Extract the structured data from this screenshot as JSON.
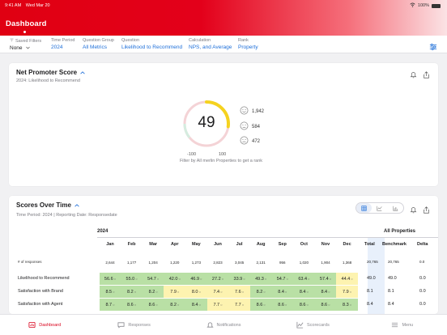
{
  "status": {
    "time": "9:41 AM",
    "date": "Wed Mar 20",
    "battery": "100%"
  },
  "app": {
    "title": "Dashboard"
  },
  "filters": [
    {
      "label": "Saved Filters",
      "value": "None",
      "dark": true
    },
    {
      "label": "Time Period",
      "value": "2024"
    },
    {
      "label": "Question Group",
      "value": "All Metrics"
    },
    {
      "label": "Question",
      "value": "Likelihood to Recommend"
    },
    {
      "label": "Calculation",
      "value": "NPS, and Average"
    },
    {
      "label": "Rank",
      "value": "Property"
    }
  ],
  "nps": {
    "title": "Net Promoter Score",
    "subtitle": "2024: Likelihood to Recommend",
    "score": "49",
    "min": "-100",
    "max": "100",
    "note": "Filter by All merlin Properties to get a rank",
    "promoters": "1,942",
    "passives": "584",
    "detractors": "472",
    "gauge_fraction": 0.745
  },
  "scores": {
    "title": "Scores Over Time",
    "subtitle": "Time Period: 2024 | Reporting Date: Responsedate",
    "year": "2024",
    "all_properties": "All Properties",
    "months": [
      "Jan",
      "Feb",
      "Mar",
      "Apr",
      "May",
      "Jun",
      "Jul",
      "Aug",
      "Sep",
      "Oct",
      "Nov",
      "Dec"
    ],
    "total_label": "Total",
    "benchmark_label": "Benchmark",
    "delta_label": "Delta",
    "rows": [
      {
        "label": "# of responses",
        "small": true,
        "values": [
          "2,644",
          "1,177",
          "1,204",
          "1,220",
          "1,273",
          "2,823",
          "3,045",
          "2,131",
          "956",
          "1,020",
          "1,904",
          "1,368"
        ],
        "colors": [
          "none",
          "none",
          "none",
          "none",
          "none",
          "none",
          "none",
          "none",
          "none",
          "none",
          "none",
          "none"
        ],
        "total": "20,765",
        "benchmark": "20,765",
        "delta": "0.0"
      },
      {
        "label": "Likelihood to Recommend",
        "values": [
          "56.6",
          "55.0",
          "54.7",
          "42.0",
          "46.9",
          "27.2",
          "33.9",
          "49.3",
          "54.7",
          "63.4",
          "57.4",
          "44.4"
        ],
        "colors": [
          "g",
          "g",
          "g",
          "g",
          "g",
          "g",
          "g",
          "g",
          "g",
          "g",
          "g",
          "y"
        ],
        "total": "49.0",
        "benchmark": "49.0",
        "delta": "0.0"
      },
      {
        "label": "Satisfaction with Brand",
        "values": [
          "8.5",
          "8.2",
          "8.2",
          "7.9",
          "8.0",
          "7.4",
          "7.6",
          "8.2",
          "8.4",
          "8.4",
          "8.4",
          "7.9"
        ],
        "colors": [
          "g",
          "g",
          "g",
          "y",
          "y",
          "y",
          "y",
          "g",
          "g",
          "g",
          "g",
          "y"
        ],
        "total": "8.1",
        "benchmark": "8.1",
        "delta": "0.0"
      },
      {
        "label": "Satisfaction with Agent",
        "values": [
          "8.7",
          "8.6",
          "8.6",
          "8.2",
          "8.4",
          "7.7",
          "7.7",
          "8.6",
          "8.6",
          "8.6",
          "8.6",
          "8.3"
        ],
        "colors": [
          "g",
          "g",
          "g",
          "g",
          "g",
          "y",
          "y",
          "g",
          "g",
          "g",
          "g",
          "g"
        ],
        "total": "8.4",
        "benchmark": "8.4",
        "delta": "0.0"
      }
    ]
  },
  "colors": {
    "accent": "#e3001a",
    "link": "#1e6fd9",
    "good": "#b9e0a5",
    "warn": "#fdf3b0",
    "gauge": "#f5d21f"
  },
  "tabs": [
    {
      "label": "Dashboard",
      "icon": "dashboard-icon",
      "active": true
    },
    {
      "label": "Responses",
      "icon": "responses-icon"
    },
    {
      "label": "Notifications",
      "icon": "bell-icon"
    },
    {
      "label": "Scorecards",
      "icon": "chart-icon"
    },
    {
      "label": "Menu",
      "icon": "menu-icon"
    }
  ]
}
